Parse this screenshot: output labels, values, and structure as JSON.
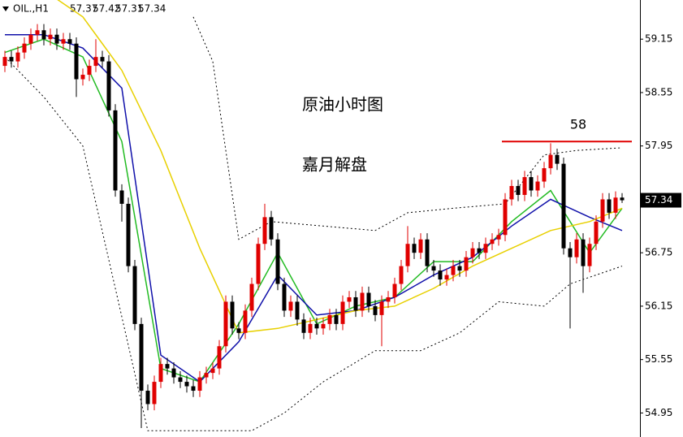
{
  "chart_data": {
    "type": "candlestick",
    "symbol": "OIL.,H1",
    "annotations": [
      "原油小时图",
      "嘉月解盘"
    ],
    "hline": {
      "value": 58,
      "color": "#e00000"
    },
    "up_color": "#e00000",
    "down_color": "#000000",
    "ylim": [
      54.68,
      59.59
    ],
    "yticks": [
      59.15,
      58.55,
      57.95,
      56.75,
      56.15,
      55.55,
      54.95
    ],
    "open": [
      58.85,
      58.95,
      58.9,
      59.0,
      59.1,
      59.2,
      59.25,
      59.15,
      59.2,
      59.1,
      59.15,
      59.1,
      58.7,
      58.75,
      58.85,
      58.95,
      58.9,
      58.35,
      57.45,
      57.3,
      56.6,
      55.95,
      55.2,
      55.05,
      55.3,
      55.5,
      55.45,
      55.35,
      55.3,
      55.25,
      55.2,
      55.35,
      55.4,
      55.45,
      55.7,
      56.2,
      55.9,
      55.85,
      56.1,
      56.4,
      56.85,
      57.15,
      56.9,
      56.4,
      56.1,
      56.2,
      56.0,
      55.85,
      55.95,
      55.9,
      55.95,
      56.05,
      55.95,
      56.2,
      56.25,
      56.1,
      56.3,
      56.15,
      56.05,
      56.2,
      56.25,
      56.4,
      56.6,
      56.85,
      56.75,
      56.9,
      56.6,
      56.55,
      56.45,
      56.5,
      56.6,
      56.55,
      56.7,
      56.8,
      56.75,
      56.85,
      56.9,
      56.95,
      57.35,
      57.5,
      57.4,
      57.6,
      57.45,
      57.55,
      57.7,
      57.85,
      57.75,
      56.8,
      56.7,
      56.9,
      56.6,
      56.85,
      57.1,
      57.35,
      57.2,
      57.37
    ],
    "high": [
      59.02,
      59.02,
      59.07,
      59.17,
      59.27,
      59.32,
      59.32,
      59.27,
      59.27,
      59.22,
      59.22,
      59.17,
      58.82,
      58.92,
      59.15,
      59.02,
      58.97,
      58.42,
      57.52,
      57.37,
      56.67,
      56.02,
      55.27,
      55.37,
      55.57,
      55.57,
      55.52,
      55.42,
      55.37,
      55.32,
      55.42,
      55.47,
      55.52,
      55.77,
      56.27,
      56.27,
      55.97,
      56.17,
      56.47,
      56.92,
      57.3,
      57.22,
      56.97,
      56.47,
      56.27,
      56.27,
      56.07,
      56.02,
      56.02,
      56.02,
      56.12,
      56.12,
      56.27,
      56.32,
      56.32,
      56.37,
      56.37,
      56.22,
      56.27,
      56.32,
      56.47,
      56.67,
      57.05,
      56.92,
      56.97,
      56.97,
      56.67,
      56.62,
      56.57,
      56.67,
      56.67,
      56.77,
      56.87,
      56.87,
      56.92,
      56.97,
      57.02,
      57.42,
      57.57,
      57.57,
      57.67,
      57.67,
      57.62,
      57.77,
      57.98,
      57.92,
      57.82,
      56.87,
      56.97,
      56.97,
      56.92,
      57.17,
      57.42,
      57.42,
      57.44,
      57.42
    ],
    "low": [
      58.78,
      58.83,
      58.83,
      58.93,
      59.03,
      59.13,
      59.08,
      59.08,
      59.03,
      59.03,
      59.03,
      58.5,
      58.63,
      58.68,
      58.78,
      58.83,
      58.28,
      57.38,
      57.1,
      56.53,
      55.88,
      54.78,
      54.98,
      54.98,
      55.23,
      55.38,
      55.28,
      55.23,
      55.18,
      55.13,
      55.13,
      55.28,
      55.33,
      55.38,
      55.63,
      55.83,
      55.78,
      55.78,
      56.03,
      56.33,
      56.78,
      56.83,
      56.33,
      56.03,
      56.03,
      55.93,
      55.78,
      55.78,
      55.83,
      55.83,
      55.88,
      55.88,
      55.88,
      56.13,
      56.03,
      56.03,
      56.08,
      55.98,
      55.7,
      56.13,
      56.18,
      56.33,
      56.53,
      56.68,
      56.68,
      56.53,
      56.48,
      56.38,
      56.38,
      56.43,
      56.48,
      56.48,
      56.63,
      56.68,
      56.68,
      56.78,
      56.83,
      56.88,
      57.28,
      57.33,
      57.33,
      57.38,
      57.38,
      57.48,
      57.63,
      57.68,
      56.73,
      55.9,
      56.63,
      56.3,
      56.53,
      56.78,
      57.03,
      57.13,
      57.13,
      57.31
    ],
    "close": [
      58.95,
      58.9,
      59.0,
      59.1,
      59.2,
      59.25,
      59.15,
      59.2,
      59.1,
      59.15,
      59.1,
      58.7,
      58.75,
      58.85,
      58.95,
      58.9,
      58.35,
      57.45,
      57.3,
      56.6,
      55.95,
      55.2,
      55.05,
      55.3,
      55.5,
      55.45,
      55.35,
      55.3,
      55.25,
      55.2,
      55.35,
      55.4,
      55.45,
      55.7,
      56.2,
      55.9,
      55.85,
      56.1,
      56.4,
      56.85,
      57.15,
      56.9,
      56.4,
      56.1,
      56.2,
      56.0,
      55.85,
      55.95,
      55.9,
      55.95,
      56.05,
      55.95,
      56.2,
      56.25,
      56.1,
      56.3,
      56.15,
      56.05,
      56.2,
      56.25,
      56.4,
      56.6,
      56.85,
      56.75,
      56.9,
      56.6,
      56.55,
      56.45,
      56.5,
      56.6,
      56.55,
      56.7,
      56.8,
      56.75,
      56.85,
      56.9,
      56.95,
      57.35,
      57.5,
      57.4,
      57.6,
      57.45,
      57.55,
      57.7,
      57.85,
      57.75,
      56.8,
      56.7,
      56.9,
      56.6,
      56.85,
      57.1,
      57.35,
      57.2,
      57.37,
      57.34
    ],
    "series": [
      {
        "color": "#22bb22",
        "style": "solid",
        "x": [
          0,
          6,
          12,
          18,
          24,
          30,
          36,
          42,
          48,
          54,
          60,
          66,
          72,
          78,
          84,
          90,
          95
        ],
        "values": [
          59.0,
          59.15,
          58.95,
          58.0,
          55.45,
          55.3,
          55.95,
          56.75,
          55.95,
          56.15,
          56.25,
          56.65,
          56.65,
          57.1,
          57.45,
          56.75,
          57.25
        ]
      },
      {
        "color": "#1010aa",
        "style": "solid",
        "x": [
          0,
          6,
          12,
          18,
          24,
          30,
          36,
          42,
          48,
          54,
          60,
          66,
          72,
          78,
          84,
          90,
          95
        ],
        "values": [
          59.2,
          59.2,
          59.05,
          58.6,
          55.6,
          55.3,
          55.75,
          56.5,
          56.05,
          56.1,
          56.25,
          56.5,
          56.7,
          57.05,
          57.35,
          57.15,
          57.0
        ]
      },
      {
        "color": "#e8d000",
        "style": "solid",
        "x": [
          8,
          12,
          18,
          24,
          30,
          36,
          42,
          48,
          54,
          60,
          66,
          72,
          78,
          84,
          90,
          95
        ],
        "values": [
          59.6,
          59.4,
          58.8,
          57.9,
          56.8,
          55.85,
          55.9,
          56.0,
          56.1,
          56.15,
          56.35,
          56.6,
          56.8,
          57.0,
          57.1,
          57.25
        ]
      },
      {
        "color": "#000000",
        "style": "dotted",
        "x": [
          29,
          32,
          36,
          41,
          49,
          57,
          62,
          69,
          77,
          83,
          88,
          95
        ],
        "values": [
          59.4,
          58.9,
          56.9,
          57.1,
          57.05,
          57.0,
          57.2,
          57.25,
          57.3,
          57.85,
          57.9,
          57.93
        ]
      },
      {
        "color": "#000000",
        "style": "dotted",
        "x": [
          0,
          6,
          12,
          22,
          38,
          43,
          49,
          57,
          64,
          70,
          76,
          83,
          87,
          95
        ],
        "values": [
          58.95,
          58.5,
          57.95,
          54.75,
          54.75,
          54.95,
          55.3,
          55.65,
          55.65,
          55.85,
          56.2,
          56.15,
          56.4,
          56.6
        ]
      }
    ]
  }
}
